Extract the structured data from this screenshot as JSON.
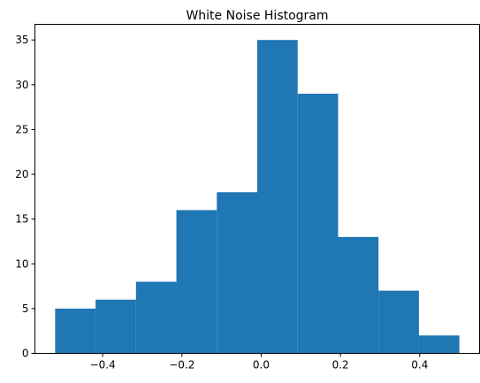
{
  "chart_data": {
    "type": "bar",
    "title": "White Noise Histogram",
    "xlabel": "",
    "ylabel": "",
    "bins": [
      {
        "x0": -0.52,
        "x1": -0.418,
        "count": 5
      },
      {
        "x0": -0.418,
        "x1": -0.316,
        "count": 6
      },
      {
        "x0": -0.316,
        "x1": -0.214,
        "count": 8
      },
      {
        "x0": -0.214,
        "x1": -0.112,
        "count": 16
      },
      {
        "x0": -0.112,
        "x1": -0.01,
        "count": 18
      },
      {
        "x0": -0.01,
        "x1": 0.092,
        "count": 35
      },
      {
        "x0": 0.092,
        "x1": 0.194,
        "count": 29
      },
      {
        "x0": 0.194,
        "x1": 0.296,
        "count": 13
      },
      {
        "x0": 0.296,
        "x1": 0.398,
        "count": 7
      },
      {
        "x0": 0.398,
        "x1": 0.5,
        "count": 2
      }
    ],
    "xlim": [
      -0.571,
      0.551
    ],
    "ylim": [
      0,
      36.75
    ],
    "xticks": [
      "−0.4",
      "−0.2",
      "0.0",
      "0.2",
      "0.4"
    ],
    "xtick_values": [
      -0.4,
      -0.2,
      0.0,
      0.2,
      0.4
    ],
    "yticks": [
      "0",
      "5",
      "10",
      "15",
      "20",
      "25",
      "30",
      "35"
    ],
    "ytick_values": [
      0,
      5,
      10,
      15,
      20,
      25,
      30,
      35
    ],
    "bar_color": "#1f77b4",
    "grid": false
  }
}
